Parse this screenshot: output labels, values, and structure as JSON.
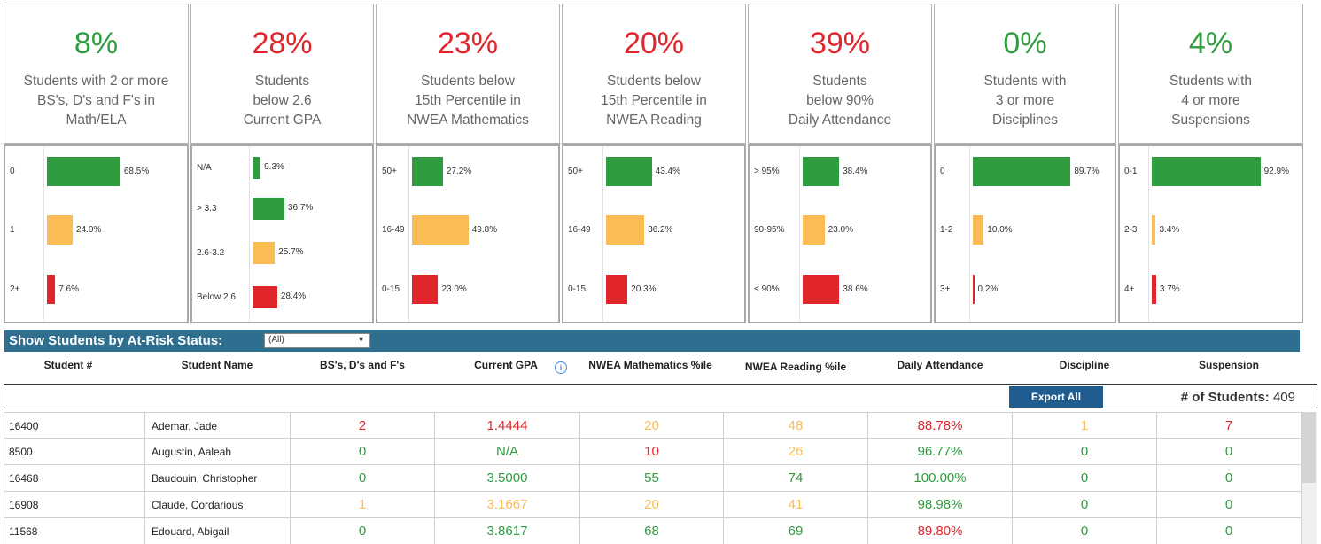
{
  "colors": {
    "green": "#2e9c3f",
    "orange": "#fbbc55",
    "red": "#e0262b",
    "band": "#2e6e8e"
  },
  "kpis": [
    {
      "pct": "8%",
      "color": "green",
      "lines": [
        "Students with 2 or more",
        "BS's, D's and F's in",
        "Math/ELA"
      ]
    },
    {
      "pct": "28%",
      "color": "red",
      "lines": [
        "Students",
        "below 2.6",
        "Current GPA"
      ]
    },
    {
      "pct": "23%",
      "color": "red",
      "lines": [
        "Students below",
        "15th Percentile in",
        "NWEA Mathematics"
      ]
    },
    {
      "pct": "20%",
      "color": "red",
      "lines": [
        "Students below",
        "15th Percentile in",
        "NWEA Reading"
      ]
    },
    {
      "pct": "39%",
      "color": "red",
      "lines": [
        "Students",
        "below 90%",
        "Daily Attendance"
      ]
    },
    {
      "pct": "0%",
      "color": "green",
      "lines": [
        "Students with",
        "3 or more",
        "Disciplines"
      ]
    },
    {
      "pct": "4%",
      "color": "green",
      "lines": [
        "Students with",
        "4 or more",
        "Suspensions"
      ]
    }
  ],
  "chart_data": [
    {
      "type": "bar",
      "categories": [
        "0",
        "1",
        "2+"
      ],
      "values": [
        68.5,
        24.0,
        7.6
      ],
      "labels": [
        "68.5%",
        "24.0%",
        "7.6%"
      ],
      "colors": [
        "green",
        "orange",
        "red"
      ]
    },
    {
      "type": "bar",
      "categories": [
        "N/A",
        "> 3.3",
        "2.6-3.2",
        "Below 2.6"
      ],
      "values": [
        9.3,
        36.7,
        25.7,
        28.4
      ],
      "labels": [
        "9.3%",
        "36.7%",
        "25.7%",
        "28.4%"
      ],
      "colors": [
        "green",
        "green",
        "orange",
        "red"
      ]
    },
    {
      "type": "bar",
      "categories": [
        "50+",
        "16-49",
        "0-15"
      ],
      "values": [
        27.2,
        49.8,
        23.0
      ],
      "labels": [
        "27.2%",
        "49.8%",
        "23.0%"
      ],
      "colors": [
        "green",
        "orange",
        "red"
      ]
    },
    {
      "type": "bar",
      "categories": [
        "50+",
        "16-49",
        "0-15"
      ],
      "values": [
        43.4,
        36.2,
        20.3
      ],
      "labels": [
        "43.4%",
        "36.2%",
        "20.3%"
      ],
      "colors": [
        "green",
        "orange",
        "red"
      ]
    },
    {
      "type": "bar",
      "categories": [
        "> 95%",
        "90-95%",
        "< 90%"
      ],
      "values": [
        38.4,
        23.0,
        38.6
      ],
      "labels": [
        "38.4%",
        "23.0%",
        "38.6%"
      ],
      "colors": [
        "green",
        "orange",
        "red"
      ]
    },
    {
      "type": "bar",
      "categories": [
        "0",
        "1-2",
        "3+"
      ],
      "values": [
        89.7,
        10.0,
        0.2
      ],
      "labels": [
        "89.7%",
        "10.0%",
        "0.2%"
      ],
      "colors": [
        "green",
        "orange",
        "red"
      ]
    },
    {
      "type": "bar",
      "categories": [
        "0-1",
        "2-3",
        "4+"
      ],
      "values": [
        92.9,
        3.4,
        3.7
      ],
      "labels": [
        "92.9%",
        "3.4%",
        "3.7%"
      ],
      "colors": [
        "green",
        "orange",
        "red"
      ]
    }
  ],
  "filter": {
    "title": "Show Students by At-Risk Status:",
    "value": "(All)"
  },
  "columns": [
    "Student #",
    "Student Name",
    "BS's, D's and F's",
    "Current GPA",
    "NWEA Mathematics %ile",
    "NWEA Reading %ile",
    "Daily Attendance",
    "Discipline",
    "Suspension"
  ],
  "summary": {
    "export_label": "Export All",
    "count_label": "# of Students:",
    "count_value": "409"
  },
  "rows": [
    {
      "id": "16400",
      "name": "Ademar, Jade",
      "cells": [
        [
          "2",
          "red"
        ],
        [
          "1.4444",
          "red"
        ],
        [
          "20",
          "orange"
        ],
        [
          "48",
          "orange"
        ],
        [
          "88.78%",
          "red"
        ],
        [
          "1",
          "orange"
        ],
        [
          "7",
          "red"
        ]
      ]
    },
    {
      "id": "8500",
      "name": "Augustin, Aaleah",
      "cells": [
        [
          "0",
          "green"
        ],
        [
          "N/A",
          "green"
        ],
        [
          "10",
          "red"
        ],
        [
          "26",
          "orange"
        ],
        [
          "96.77%",
          "green"
        ],
        [
          "0",
          "green"
        ],
        [
          "0",
          "green"
        ]
      ]
    },
    {
      "id": "16468",
      "name": "Baudouin, Christopher",
      "cells": [
        [
          "0",
          "green"
        ],
        [
          "3.5000",
          "green"
        ],
        [
          "55",
          "green"
        ],
        [
          "74",
          "green"
        ],
        [
          "100.00%",
          "green"
        ],
        [
          "0",
          "green"
        ],
        [
          "0",
          "green"
        ]
      ]
    },
    {
      "id": "16908",
      "name": "Claude, Cordarious",
      "cells": [
        [
          "1",
          "orange"
        ],
        [
          "3.1667",
          "orange"
        ],
        [
          "20",
          "orange"
        ],
        [
          "41",
          "orange"
        ],
        [
          "98.98%",
          "green"
        ],
        [
          "0",
          "green"
        ],
        [
          "0",
          "green"
        ]
      ]
    },
    {
      "id": "11568",
      "name": "Edouard, Abigail",
      "cells": [
        [
          "0",
          "green"
        ],
        [
          "3.8617",
          "green"
        ],
        [
          "68",
          "green"
        ],
        [
          "69",
          "green"
        ],
        [
          "89.80%",
          "red"
        ],
        [
          "0",
          "green"
        ],
        [
          "0",
          "green"
        ]
      ]
    }
  ]
}
